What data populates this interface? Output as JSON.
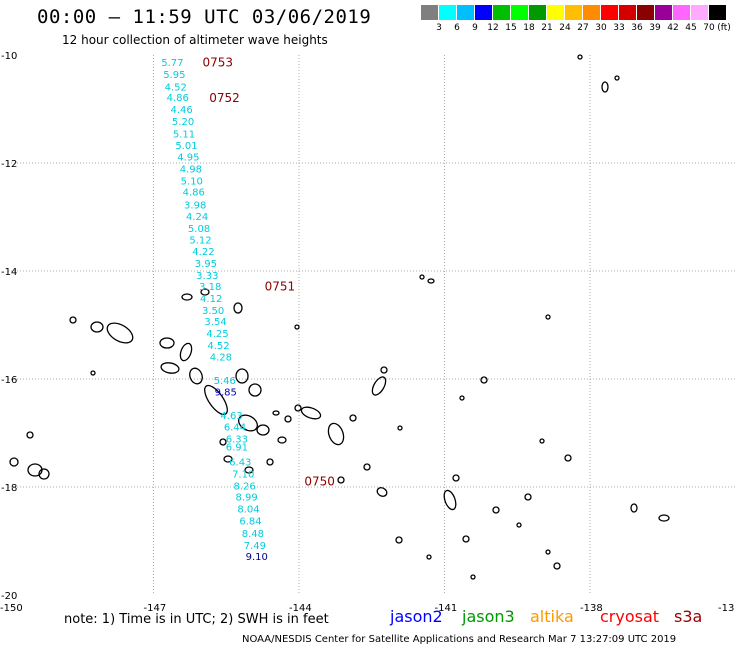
{
  "header": {
    "title": "00:00 — 11:59 UTC 03/06/2019",
    "subtitle": "12 hour collection of altimeter wave heights"
  },
  "legend": {
    "colors": [
      "#7f7f7f",
      "#00ffff",
      "#00bfff",
      "#0000ff",
      "#00bf00",
      "#00ff00",
      "#009900",
      "#ffff00",
      "#ffbf00",
      "#ff8c00",
      "#ff0000",
      "#d40000",
      "#8b0000",
      "#990099",
      "#ff66ff",
      "#ffaaff",
      "#000000"
    ],
    "labels": [
      "3",
      "6",
      "9",
      "12",
      "15",
      "18",
      "21",
      "24",
      "27",
      "30",
      "33",
      "36",
      "39",
      "42",
      "45",
      "70"
    ],
    "unit": "(ft)"
  },
  "axes": {
    "lon_ticks": [
      "-150",
      "-147",
      "-144",
      "-141",
      "-138",
      "-13"
    ],
    "lat_ticks": [
      "-10",
      "-12",
      "-14",
      "-16",
      "-18",
      "-20"
    ]
  },
  "map_data": {
    "times": [
      {
        "label": "0753",
        "lon": -145.99,
        "lat": -10.12
      },
      {
        "label": "0752",
        "lon": -145.85,
        "lat": -10.78
      },
      {
        "label": "0751",
        "lon": -144.71,
        "lat": -14.27
      },
      {
        "label": "0750",
        "lon": -143.89,
        "lat": -17.88
      }
    ],
    "wave_heights": [
      {
        "value": "5.77",
        "lon": -146.84,
        "lat": -10.13,
        "color": "#00ccdd"
      },
      {
        "value": "5.95",
        "lon": -146.8,
        "lat": -10.35,
        "color": "#00ccdd"
      },
      {
        "value": "4.52",
        "lon": -146.77,
        "lat": -10.58,
        "color": "#00ccdd"
      },
      {
        "value": "4.86",
        "lon": -146.73,
        "lat": -10.78,
        "color": "#00ccdd"
      },
      {
        "value": "4.46",
        "lon": -146.65,
        "lat": -11.0,
        "color": "#00ccdd"
      },
      {
        "value": "5.20",
        "lon": -146.62,
        "lat": -11.22,
        "color": "#00ccdd"
      },
      {
        "value": "5.11",
        "lon": -146.6,
        "lat": -11.45,
        "color": "#00ccdd"
      },
      {
        "value": "5.01",
        "lon": -146.55,
        "lat": -11.67,
        "color": "#00ccdd"
      },
      {
        "value": "4.95",
        "lon": -146.51,
        "lat": -11.88,
        "color": "#00ccdd"
      },
      {
        "value": "4.98",
        "lon": -146.46,
        "lat": -12.1,
        "color": "#00ccdd"
      },
      {
        "value": "5.10",
        "lon": -146.44,
        "lat": -12.32,
        "color": "#00ccdd"
      },
      {
        "value": "4.86",
        "lon": -146.4,
        "lat": -12.53,
        "color": "#00ccdd"
      },
      {
        "value": "3.98",
        "lon": -146.37,
        "lat": -12.77,
        "color": "#00ccdd"
      },
      {
        "value": "4.24",
        "lon": -146.33,
        "lat": -12.98,
        "color": "#00ccdd"
      },
      {
        "value": "5.08",
        "lon": -146.29,
        "lat": -13.2,
        "color": "#00ccdd"
      },
      {
        "value": "5.12",
        "lon": -146.26,
        "lat": -13.42,
        "color": "#00ccdd"
      },
      {
        "value": "4.22",
        "lon": -146.2,
        "lat": -13.63,
        "color": "#00ccdd"
      },
      {
        "value": "3.95",
        "lon": -146.15,
        "lat": -13.85,
        "color": "#00ccdd"
      },
      {
        "value": "3.33",
        "lon": -146.12,
        "lat": -14.07,
        "color": "#00ccdd"
      },
      {
        "value": "3.18",
        "lon": -146.06,
        "lat": -14.28,
        "color": "#00ccdd"
      },
      {
        "value": "4.12",
        "lon": -146.04,
        "lat": -14.5,
        "color": "#00ccdd"
      },
      {
        "value": "3.50",
        "lon": -146.0,
        "lat": -14.72,
        "color": "#00ccdd"
      },
      {
        "value": "3.54",
        "lon": -145.95,
        "lat": -14.93,
        "color": "#00ccdd"
      },
      {
        "value": "4.25",
        "lon": -145.91,
        "lat": -15.15,
        "color": "#00ccdd"
      },
      {
        "value": "4.52",
        "lon": -145.89,
        "lat": -15.37,
        "color": "#00ccdd"
      },
      {
        "value": "4.28",
        "lon": -145.84,
        "lat": -15.58,
        "color": "#00ccdd"
      },
      {
        "value": "5.46",
        "lon": -145.76,
        "lat": -16.02,
        "color": "#00ccdd"
      },
      {
        "value": "9.85",
        "lon": -145.74,
        "lat": -16.23,
        "color": "#0000cc"
      },
      {
        "value": "4.63",
        "lon": -145.62,
        "lat": -16.67,
        "color": "#00ccdd"
      },
      {
        "value": "6.44",
        "lon": -145.55,
        "lat": -16.88,
        "color": "#00ccdd"
      },
      {
        "value": "6.33",
        "lon": -145.51,
        "lat": -17.1,
        "color": "#00ccdd"
      },
      {
        "value": "6.91",
        "lon": -145.51,
        "lat": -17.25,
        "color": "#00ccdd"
      },
      {
        "value": "6.43",
        "lon": -145.44,
        "lat": -17.53,
        "color": "#00ccdd"
      },
      {
        "value": "7.10",
        "lon": -145.38,
        "lat": -17.75,
        "color": "#00ccdd"
      },
      {
        "value": "8.26",
        "lon": -145.35,
        "lat": -17.97,
        "color": "#00ccdd"
      },
      {
        "value": "8.99",
        "lon": -145.31,
        "lat": -18.18,
        "color": "#00ccdd"
      },
      {
        "value": "8.04",
        "lon": -145.27,
        "lat": -18.4,
        "color": "#00ccdd"
      },
      {
        "value": "6.84",
        "lon": -145.23,
        "lat": -18.62,
        "color": "#00ccdd"
      },
      {
        "value": "8.48",
        "lon": -145.18,
        "lat": -18.85,
        "color": "#00ccdd"
      },
      {
        "value": "7.49",
        "lon": -145.14,
        "lat": -19.07,
        "color": "#00ccdd"
      },
      {
        "value": "9.10",
        "lon": -145.1,
        "lat": -19.28,
        "color": "#000088"
      }
    ]
  },
  "footer": {
    "note": "note:  1) Time is in UTC;  2) SWH is in feet",
    "satellites": [
      {
        "name": "jason2",
        "color": "#0000ff"
      },
      {
        "name": "jason3",
        "color": "#009900"
      },
      {
        "name": "altika",
        "color": "#ff9900"
      },
      {
        "name": "cryosat",
        "color": "#ff0000"
      },
      {
        "name": "s3a",
        "color": "#990000"
      }
    ],
    "credit": "NOAA/NESDIS Center for Satellite Applications and Research   Mar  7 13:27:09 UTC 2019"
  }
}
